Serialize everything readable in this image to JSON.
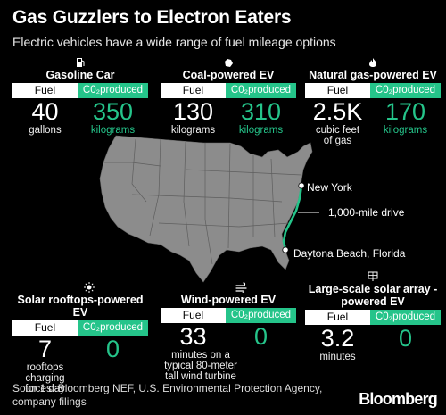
{
  "title": "Gas Guzzlers to Electron Eaters",
  "subtitle": "Electric vehicles have a wide range of fuel mileage options",
  "colors": {
    "accent": "#25c48a",
    "map": "#8c8c8c",
    "background": "#000000"
  },
  "labels": {
    "fuel": "Fuel",
    "co2": "C0₂produced"
  },
  "panels": [
    {
      "title": "Gasoline Car",
      "icon": "gas-pump-icon",
      "fuel_value": "40",
      "fuel_unit": "gallons",
      "co2_value": "350",
      "co2_unit": "kilograms"
    },
    {
      "title": "Coal-powered EV",
      "icon": "coal-icon",
      "fuel_value": "130",
      "fuel_unit": "kilograms",
      "co2_value": "310",
      "co2_unit": "kilograms"
    },
    {
      "title": "Natural gas-powered EV",
      "icon": "flame-icon",
      "fuel_value": "2.5K",
      "fuel_unit": "cubic feet of gas",
      "co2_value": "170",
      "co2_unit": "kilograms"
    },
    {
      "title": "Solar rooftops-powered EV",
      "icon": "sun-icon",
      "fuel_value": "7",
      "fuel_unit": "rooftops charging for 1 day",
      "co2_value": "0",
      "co2_unit": ""
    },
    {
      "title": "Wind-powered EV",
      "icon": "wind-icon",
      "fuel_value": "33",
      "fuel_unit": "minutes on a typical 80-meter tall wind turbine",
      "co2_value": "0",
      "co2_unit": ""
    },
    {
      "title": "Large-scale solar array -powered EV",
      "icon": "solar-panel-icon",
      "fuel_value": "3.2",
      "fuel_unit": "minutes",
      "co2_value": "0",
      "co2_unit": ""
    }
  ],
  "map": {
    "start_city": "New York",
    "end_city": "Daytona Beach, Florida",
    "route_label": "1,000-mile drive"
  },
  "footer": {
    "sources": "Sources: Bloomberg NEF, U.S. Environmental Protection Agency, company filings",
    "brand": "Bloomberg"
  }
}
